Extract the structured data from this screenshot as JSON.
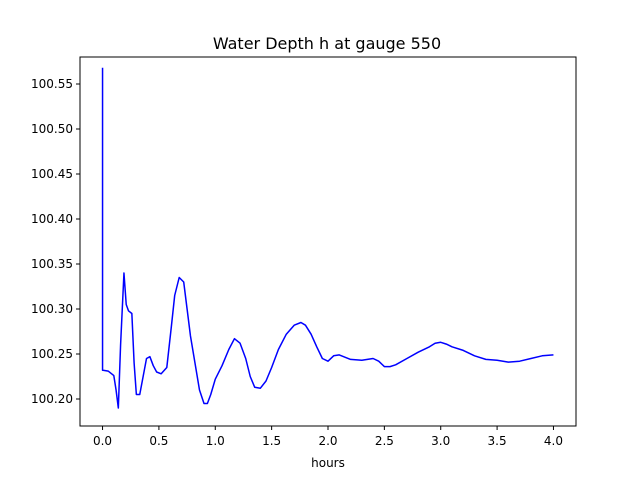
{
  "chart_data": {
    "type": "line",
    "title": "Water Depth h at gauge 550",
    "xlabel": "hours",
    "ylabel": "",
    "xlim": [
      -0.2,
      4.2
    ],
    "ylim": [
      100.17,
      100.58
    ],
    "xticks": [
      0.0,
      0.5,
      1.0,
      1.5,
      2.0,
      2.5,
      3.0,
      3.5,
      4.0
    ],
    "xtick_labels": [
      "0.0",
      "0.5",
      "1.0",
      "1.5",
      "2.0",
      "2.5",
      "3.0",
      "3.5",
      "4.0"
    ],
    "yticks": [
      100.2,
      100.25,
      100.3,
      100.35,
      100.4,
      100.45,
      100.5,
      100.55
    ],
    "ytick_labels": [
      "100.20",
      "100.25",
      "100.30",
      "100.35",
      "100.40",
      "100.45",
      "100.50",
      "100.55"
    ],
    "grid": false,
    "legend": "none",
    "series": [
      {
        "color": "#0000ff",
        "x": [
          0.0,
          0.0,
          0.005,
          0.05,
          0.1,
          0.12,
          0.14,
          0.16,
          0.19,
          0.21,
          0.23,
          0.26,
          0.28,
          0.3,
          0.33,
          0.36,
          0.39,
          0.42,
          0.45,
          0.48,
          0.52,
          0.57,
          0.61,
          0.64,
          0.68,
          0.72,
          0.75,
          0.78,
          0.82,
          0.86,
          0.9,
          0.93,
          0.96,
          1.0,
          1.06,
          1.12,
          1.17,
          1.22,
          1.27,
          1.31,
          1.35,
          1.4,
          1.45,
          1.5,
          1.56,
          1.63,
          1.7,
          1.76,
          1.8,
          1.85,
          1.9,
          1.95,
          2.0,
          2.05,
          2.1,
          2.2,
          2.3,
          2.4,
          2.45,
          2.5,
          2.55,
          2.6,
          2.7,
          2.8,
          2.9,
          2.95,
          3.0,
          3.05,
          3.1,
          3.2,
          3.3,
          3.4,
          3.5,
          3.6,
          3.7,
          3.8,
          3.9,
          4.0
        ],
        "y": [
          100.568,
          100.232,
          100.232,
          100.231,
          100.226,
          100.21,
          100.19,
          100.26,
          100.34,
          100.305,
          100.298,
          100.295,
          100.24,
          100.205,
          100.205,
          100.225,
          100.245,
          100.247,
          100.237,
          100.23,
          100.228,
          100.235,
          100.28,
          100.315,
          100.335,
          100.33,
          100.3,
          100.27,
          100.24,
          100.21,
          100.195,
          100.195,
          100.205,
          100.222,
          100.237,
          100.255,
          100.267,
          100.262,
          100.245,
          100.225,
          100.213,
          100.212,
          100.22,
          100.235,
          100.255,
          100.272,
          100.282,
          100.285,
          100.282,
          100.272,
          100.258,
          100.245,
          100.242,
          100.248,
          100.249,
          100.244,
          100.243,
          100.245,
          100.242,
          100.236,
          100.236,
          100.238,
          100.245,
          100.252,
          100.258,
          100.262,
          100.263,
          100.261,
          100.258,
          100.254,
          100.248,
          100.244,
          100.243,
          100.241,
          100.242,
          100.245,
          100.248,
          100.249
        ]
      }
    ]
  }
}
